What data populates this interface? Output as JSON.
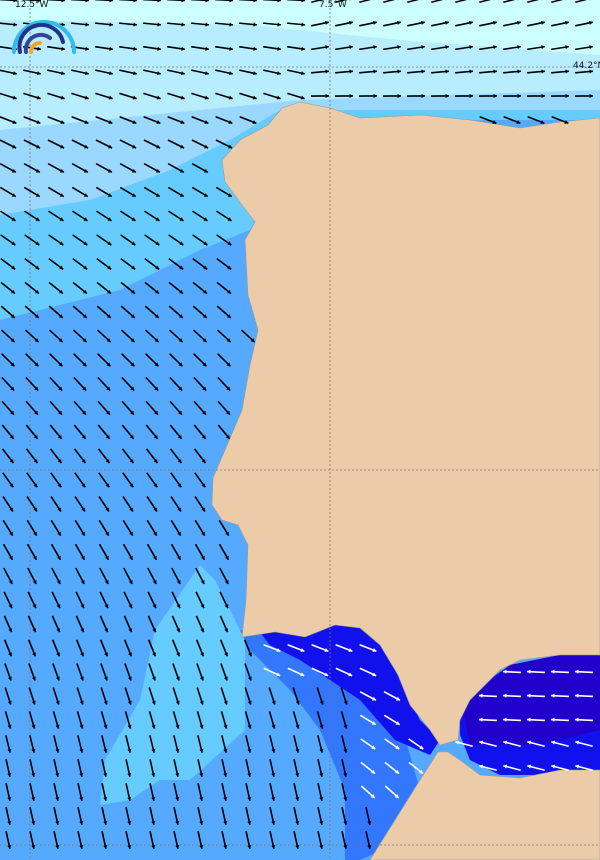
{
  "map": {
    "grid_labels": {
      "lon_left": "12.5°W",
      "lon_mid": "7.5°W",
      "lat_top": "44.2°N"
    },
    "colors": {
      "land": "#eccba8",
      "sea_lightest": "#ccffff",
      "sea_light": "#b8ecff",
      "sea_pale": "#9ad8ff",
      "sea_mid": "#66ccff",
      "sea_blue": "#55aaff",
      "sea_strong": "#3377ff",
      "sea_dark": "#1111ee",
      "sea_darkest": "#2200cc",
      "arrow_dark": "#000000",
      "arrow_light": "#ffffff"
    },
    "logo_icon": "rainbow-arcs-logo"
  }
}
